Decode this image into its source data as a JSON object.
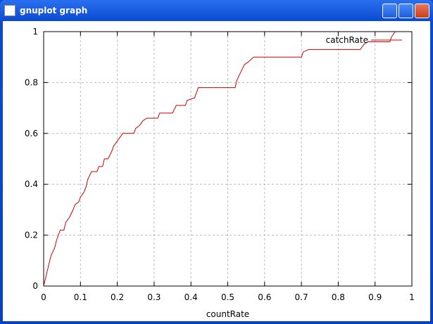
{
  "window_title": "gnuplot graph",
  "chart_data": {
    "type": "line",
    "xlabel": "countRate",
    "legend": "top-right",
    "xlim": [
      0,
      1
    ],
    "ylim": [
      0,
      1
    ],
    "xticks": [
      0,
      0.1,
      0.2,
      0.3,
      0.4,
      0.5,
      0.6,
      0.7,
      0.8,
      0.9,
      1
    ],
    "yticks": [
      0,
      0.2,
      0.4,
      0.6,
      0.8,
      1
    ],
    "grid": true,
    "x": [
      0,
      0.005,
      0.01,
      0.015,
      0.02,
      0.03,
      0.035,
      0.04,
      0.045,
      0.055,
      0.06,
      0.07,
      0.08,
      0.085,
      0.095,
      0.1,
      0.11,
      0.115,
      0.12,
      0.13,
      0.145,
      0.15,
      0.16,
      0.165,
      0.175,
      0.185,
      0.19,
      0.2,
      0.21,
      0.215,
      0.245,
      0.25,
      0.26,
      0.27,
      0.28,
      0.31,
      0.315,
      0.35,
      0.36,
      0.385,
      0.39,
      0.41,
      0.42,
      0.52,
      0.525,
      0.535,
      0.545,
      0.555,
      0.57,
      0.7,
      0.705,
      0.72,
      0.86,
      0.87,
      0.88,
      0.94,
      0.945,
      0.955
    ],
    "series": [
      {
        "name": "catchRate",
        "color": "#cc0000",
        "values": [
          0,
          0.03,
          0.06,
          0.09,
          0.12,
          0.15,
          0.18,
          0.2,
          0.22,
          0.22,
          0.25,
          0.27,
          0.3,
          0.32,
          0.33,
          0.35,
          0.37,
          0.39,
          0.42,
          0.45,
          0.45,
          0.47,
          0.47,
          0.5,
          0.5,
          0.53,
          0.55,
          0.57,
          0.59,
          0.6,
          0.6,
          0.62,
          0.63,
          0.65,
          0.66,
          0.66,
          0.68,
          0.68,
          0.71,
          0.71,
          0.73,
          0.74,
          0.78,
          0.78,
          0.81,
          0.84,
          0.87,
          0.88,
          0.9,
          0.9,
          0.92,
          0.93,
          0.93,
          0.95,
          0.96,
          0.96,
          0.98,
          1.0
        ]
      }
    ]
  }
}
